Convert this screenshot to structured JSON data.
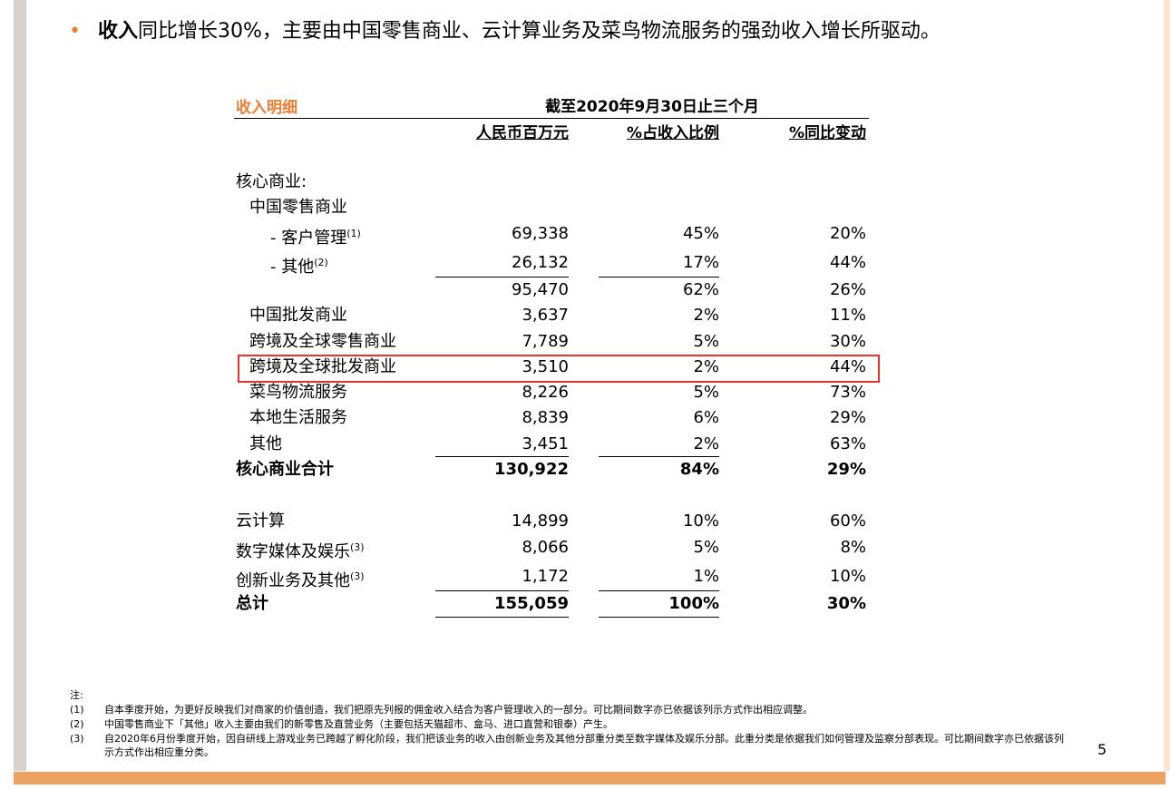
{
  "bullet": {
    "bold": "收入",
    "text": "同比增长30%，主要由中国零售商业、云计算业务及菜鸟物流服务的强劲收入增长所驱动。"
  },
  "table": {
    "title": "收入明细",
    "period": "截至2020年9月30日止三个月",
    "columns": [
      "人民币百万元",
      "%占收入比例",
      "%同比变动"
    ],
    "rows": [
      {
        "label": "核心商业:"
      },
      {
        "label": "中国零售商业"
      },
      {
        "label": "- 客户管理",
        "note": "(1)",
        "values": [
          "69,338",
          "45%",
          "20%"
        ]
      },
      {
        "label": "- 其他",
        "note": "(2)",
        "values": [
          "26,132",
          "17%",
          "44%"
        ]
      },
      {
        "values": [
          "95,470",
          "62%",
          "26%"
        ]
      },
      {
        "label": "中国批发商业",
        "values": [
          "3,637",
          "2%",
          "11%"
        ]
      },
      {
        "label": "跨境及全球零售商业",
        "values": [
          "7,789",
          "5%",
          "30%"
        ]
      },
      {
        "label": "跨境及全球批发商业",
        "values": [
          "3,510",
          "2%",
          "44%"
        ]
      },
      {
        "label": "菜鸟物流服务",
        "values": [
          "8,226",
          "5%",
          "73%"
        ]
      },
      {
        "label": "本地生活服务",
        "values": [
          "8,839",
          "6%",
          "29%"
        ]
      },
      {
        "label": "其他",
        "values": [
          "3,451",
          "2%",
          "63%"
        ]
      },
      {
        "label": "核心商业合计",
        "values": [
          "130,922",
          "84%",
          "29%"
        ]
      },
      {
        "label": "云计算",
        "values": [
          "14,899",
          "10%",
          "60%"
        ]
      },
      {
        "label": "数字媒体及娱乐",
        "note": "(3)",
        "values": [
          "8,066",
          "5%",
          "8%"
        ]
      },
      {
        "label": "创新业务及其他",
        "note": "(3)",
        "values": [
          "1,172",
          "1%",
          "10%"
        ]
      },
      {
        "label": "总计",
        "values": [
          "155,059",
          "100%",
          "30%"
        ]
      }
    ]
  },
  "notes": {
    "title": "注:",
    "items": [
      {
        "marker": "(1)",
        "text": "自本季度开始，为更好反映我们对商家的价值创造，我们把原先列报的佣金收入结合为客户管理收入的一部分。可比期间数字亦已依据该列示方式作出相应调整。"
      },
      {
        "marker": "(2)",
        "text": "中国零售商业下「其他」收入主要由我们的新零售及直营业务（主要包括天猫超市、盒马、进口直营和银泰）产生。"
      },
      {
        "marker": "(3)",
        "text": "自2020年6月份季度开始，因自研线上游戏业务已跨越了孵化阶段，我们把该业务的收入由创新业务及其他分部重分类至数字媒体及娱乐分部。此重分类是依据我们如何管理及监察分部表现。可比期间数字亦已依据该列示方式作出相应重分类。"
      }
    ]
  },
  "page_number": "5"
}
